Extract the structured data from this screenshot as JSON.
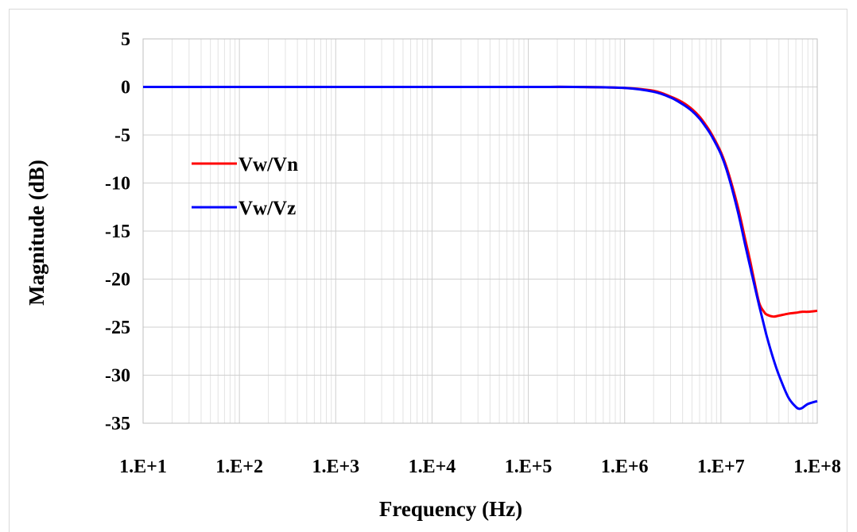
{
  "chart_data": {
    "type": "line",
    "title": "",
    "xlabel": "Frequency (Hz)",
    "ylabel": "Magnitude (dB)",
    "xscale": "log",
    "xlim": [
      10,
      100000000
    ],
    "ylim": [
      -35,
      5
    ],
    "x_tick_labels": [
      "1.E+1",
      "1.E+2",
      "1.E+3",
      "1.E+4",
      "1.E+5",
      "1.E+6",
      "1.E+7",
      "1.E+8"
    ],
    "y_tick_labels": [
      "5",
      "0",
      "-5",
      "-10",
      "-15",
      "-20",
      "-25",
      "-30",
      "-35"
    ],
    "grid": true,
    "legend_position": "left",
    "series": [
      {
        "name": "Vw/Vn",
        "color": "#ff0000",
        "x": [
          10,
          100,
          1000,
          10000,
          100000,
          300000,
          1000000,
          2000000,
          3000000,
          4000000,
          5000000,
          6000000,
          7000000,
          8000000,
          10000000,
          12000000,
          15000000,
          18000000,
          20000000,
          22000000,
          25000000,
          28000000,
          30000000,
          35000000,
          40000000,
          50000000,
          60000000,
          70000000,
          80000000,
          100000000
        ],
        "y": [
          0,
          0,
          0,
          0,
          0,
          0,
          -0.1,
          -0.4,
          -1.0,
          -1.6,
          -2.3,
          -3.1,
          -4.0,
          -4.9,
          -6.8,
          -9.0,
          -12.5,
          -16.0,
          -18.0,
          -20.0,
          -22.5,
          -23.4,
          -23.7,
          -23.9,
          -23.8,
          -23.6,
          -23.5,
          -23.4,
          -23.4,
          -23.3
        ]
      },
      {
        "name": "Vw/Vz",
        "color": "#0000ff",
        "x": [
          10,
          100,
          1000,
          10000,
          100000,
          300000,
          1000000,
          2000000,
          3000000,
          4000000,
          5000000,
          6000000,
          7000000,
          8000000,
          10000000,
          12000000,
          15000000,
          18000000,
          20000000,
          22000000,
          25000000,
          28000000,
          30000000,
          35000000,
          40000000,
          50000000,
          60000000,
          65000000,
          70000000,
          80000000,
          100000000
        ],
        "y": [
          0,
          0,
          0,
          0,
          0,
          0,
          -0.1,
          -0.5,
          -1.1,
          -1.8,
          -2.5,
          -3.3,
          -4.2,
          -5.1,
          -7.0,
          -9.3,
          -13.0,
          -16.6,
          -18.6,
          -20.4,
          -22.8,
          -24.8,
          -26.0,
          -28.3,
          -30.0,
          -32.3,
          -33.3,
          -33.5,
          -33.4,
          -33.0,
          -32.7
        ]
      }
    ]
  }
}
